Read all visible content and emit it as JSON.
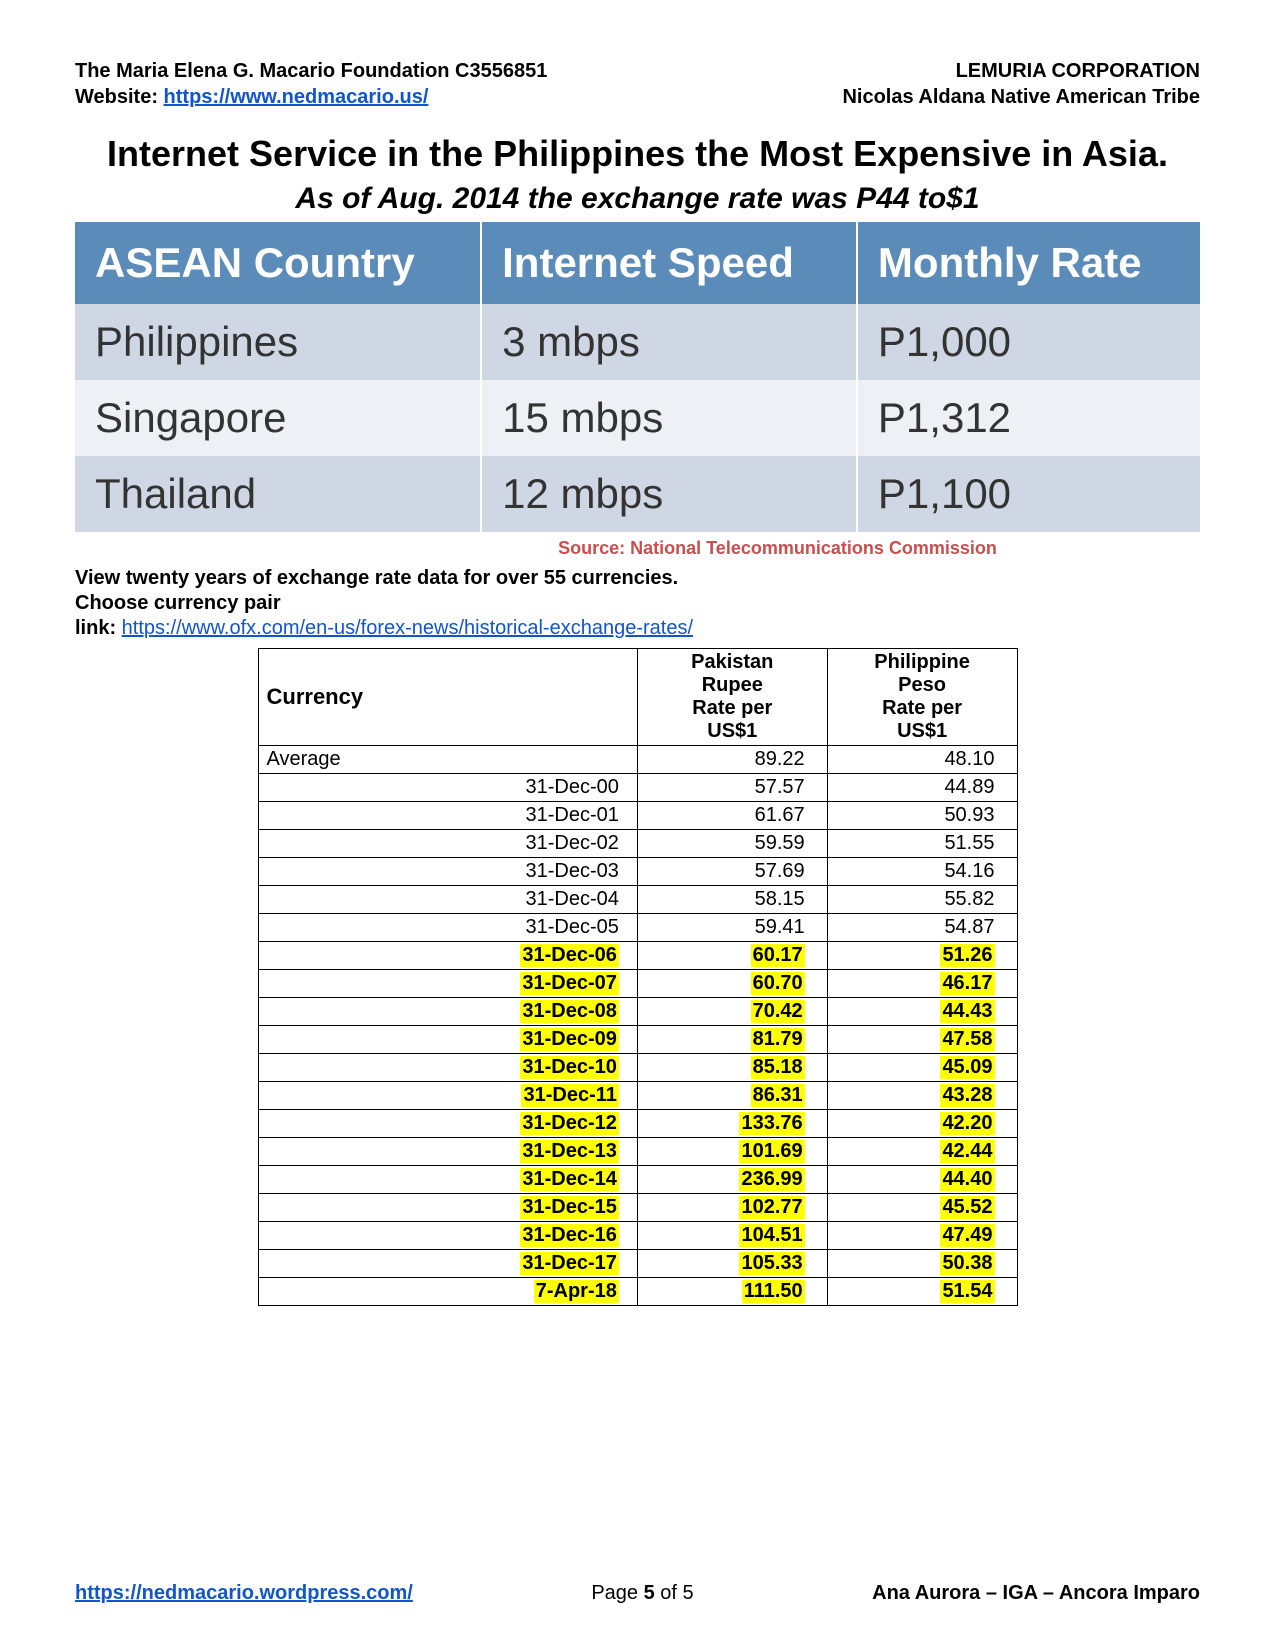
{
  "header": {
    "left_line1": "The Maria Elena G. Macario Foundation C3556851",
    "right_line1": "LEMURIA CORPORATION",
    "website_label": "Website: ",
    "website_url": "https://www.nedmacario.us/",
    "right_line2": "Nicolas Aldana Native American Tribe"
  },
  "title": "Internet Service in the Philippines the Most Expensive in Asia.",
  "subtitle": "As of Aug. 2014 the exchange rate was P44 to$1",
  "asean": {
    "headers": [
      "ASEAN Country",
      "Internet Speed",
      "Monthly Rate"
    ],
    "rows": [
      [
        "Philippines",
        "3 mbps",
        "P1,000"
      ],
      [
        "Singapore",
        "15 mbps",
        "P1,312"
      ],
      [
        "Thailand",
        "12 mbps",
        "P1,100"
      ]
    ],
    "header_bg": "#5b8bb8",
    "row_odd_bg": "#d0d7e4",
    "row_even_bg": "#eef0f5"
  },
  "source": "Source: National Telecommunications Commission",
  "body": {
    "line1": "View twenty years of exchange rate data for over 55 currencies.",
    "line2": "Choose currency pair",
    "link_label": "link: ",
    "link_url": "https://www.ofx.com/en-us/forex-news/historical-exchange-rates/"
  },
  "currency": {
    "headers": [
      "Currency",
      "Pakistan Rupee Rate per US$1",
      "Philippine Peso Rate per US$1"
    ],
    "rows": [
      {
        "date": "Average",
        "pkr": "89.22",
        "php": "48.10",
        "hl": false,
        "avg": true
      },
      {
        "date": "31-Dec-00",
        "pkr": "57.57",
        "php": "44.89",
        "hl": false
      },
      {
        "date": "31-Dec-01",
        "pkr": "61.67",
        "php": "50.93",
        "hl": false
      },
      {
        "date": "31-Dec-02",
        "pkr": "59.59",
        "php": "51.55",
        "hl": false
      },
      {
        "date": "31-Dec-03",
        "pkr": "57.69",
        "php": "54.16",
        "hl": false
      },
      {
        "date": "31-Dec-04",
        "pkr": "58.15",
        "php": "55.82",
        "hl": false
      },
      {
        "date": "31-Dec-05",
        "pkr": "59.41",
        "php": "54.87",
        "hl": false
      },
      {
        "date": "31-Dec-06",
        "pkr": "60.17",
        "php": "51.26",
        "hl": true
      },
      {
        "date": "31-Dec-07",
        "pkr": "60.70",
        "php": "46.17",
        "hl": true
      },
      {
        "date": "31-Dec-08",
        "pkr": "70.42",
        "php": "44.43",
        "hl": true
      },
      {
        "date": "31-Dec-09",
        "pkr": "81.79",
        "php": "47.58",
        "hl": true
      },
      {
        "date": "31-Dec-10",
        "pkr": "85.18",
        "php": "45.09",
        "hl": true
      },
      {
        "date": "31-Dec-11",
        "pkr": "86.31",
        "php": "43.28",
        "hl": true
      },
      {
        "date": "31-Dec-12",
        "pkr": "133.76",
        "php": "42.20",
        "hl": true
      },
      {
        "date": "31-Dec-13",
        "pkr": "101.69",
        "php": "42.44",
        "hl": true
      },
      {
        "date": "31-Dec-14",
        "pkr": "236.99",
        "php": "44.40",
        "hl": true
      },
      {
        "date": "31-Dec-15",
        "pkr": "102.77",
        "php": "45.52",
        "hl": true
      },
      {
        "date": "31-Dec-16",
        "pkr": "104.51",
        "php": "47.49",
        "hl": true
      },
      {
        "date": "31-Dec-17",
        "pkr": "105.33",
        "php": "50.38",
        "hl": true
      },
      {
        "date": "7-Apr-18",
        "pkr": "111.50",
        "php": "51.54",
        "hl": true
      }
    ],
    "highlight_bg": "#ffff00"
  },
  "footer": {
    "left": "https://nedmacario.wordpress.com/",
    "center_prefix": "Page ",
    "page_num": "5",
    "center_mid": " of ",
    "page_total": "5",
    "right": "Ana Aurora – IGA – Ancora Imparo"
  }
}
